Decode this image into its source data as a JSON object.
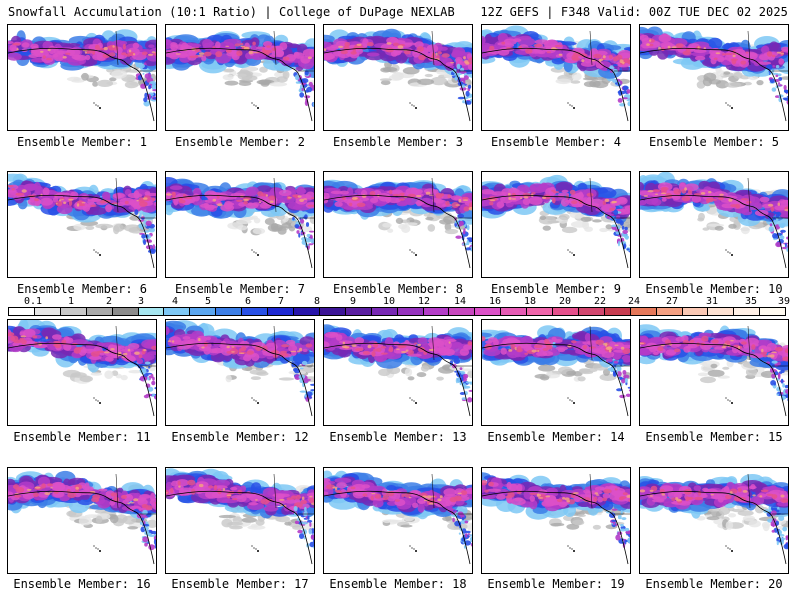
{
  "header": {
    "left": "Snowfall Accumulation (10:1 Ratio) | College of DuPage NEXLAB",
    "right": "12Z GEFS | F348 Valid: 00Z TUE DEC 02 2025"
  },
  "members": [
    "Ensemble Member: 1",
    "Ensemble Member: 2",
    "Ensemble Member: 3",
    "Ensemble Member: 4",
    "Ensemble Member: 5",
    "Ensemble Member: 6",
    "Ensemble Member: 7",
    "Ensemble Member: 8",
    "Ensemble Member: 9",
    "Ensemble Member: 10",
    "Ensemble Member: 11",
    "Ensemble Member: 12",
    "Ensemble Member: 13",
    "Ensemble Member: 14",
    "Ensemble Member: 15",
    "Ensemble Member: 16",
    "Ensemble Member: 17",
    "Ensemble Member: 18",
    "Ensemble Member: 19",
    "Ensemble Member: 20"
  ],
  "legend": {
    "labels": [
      "0.1",
      "1",
      "2",
      "3",
      "4",
      "5",
      "6",
      "7",
      "8",
      "9",
      "10",
      "12",
      "14",
      "16",
      "18",
      "20",
      "22",
      "24",
      "27",
      "31",
      "35",
      "39"
    ],
    "colors": [
      "#ffffff",
      "#e6e6e6",
      "#c8c8c8",
      "#a9a9a9",
      "#8c8c8c",
      "#a6e6f0",
      "#7ec8f5",
      "#5aa6f0",
      "#3c7ee6",
      "#2850e6",
      "#1e28d2",
      "#2814aa",
      "#3c1496",
      "#5a1ea0",
      "#7828b4",
      "#9632be",
      "#b43cc8",
      "#c846be",
      "#dc50c8",
      "#e65ab4",
      "#f064aa",
      "#e6508c",
      "#d2466e",
      "#c83c50",
      "#e6785a",
      "#f5a082",
      "#fac8b4",
      "#fde1d2",
      "#fff0e6",
      "#fffaf0"
    ]
  }
}
